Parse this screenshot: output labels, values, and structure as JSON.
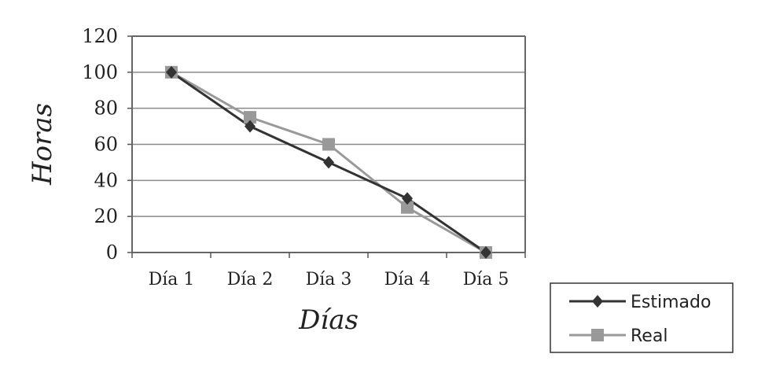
{
  "chart_data": {
    "type": "line",
    "title": "",
    "xlabel": "Días",
    "ylabel": "Horas",
    "categories": [
      "Día 1",
      "Día 2",
      "Día 3",
      "Día 4",
      "Día 5"
    ],
    "ylim": [
      0,
      120
    ],
    "yticks": [
      "0",
      "20",
      "40",
      "60",
      "80",
      "100",
      "120"
    ],
    "grid": true,
    "legend_position": "bottom-right, outside plot",
    "series": [
      {
        "name": "Estimado",
        "values": [
          100,
          70,
          50,
          30,
          0
        ],
        "color": "#333333",
        "marker": "diamond"
      },
      {
        "name": "Real",
        "values": [
          100,
          75,
          60,
          25,
          0
        ],
        "color": "#999999",
        "marker": "square"
      }
    ]
  }
}
